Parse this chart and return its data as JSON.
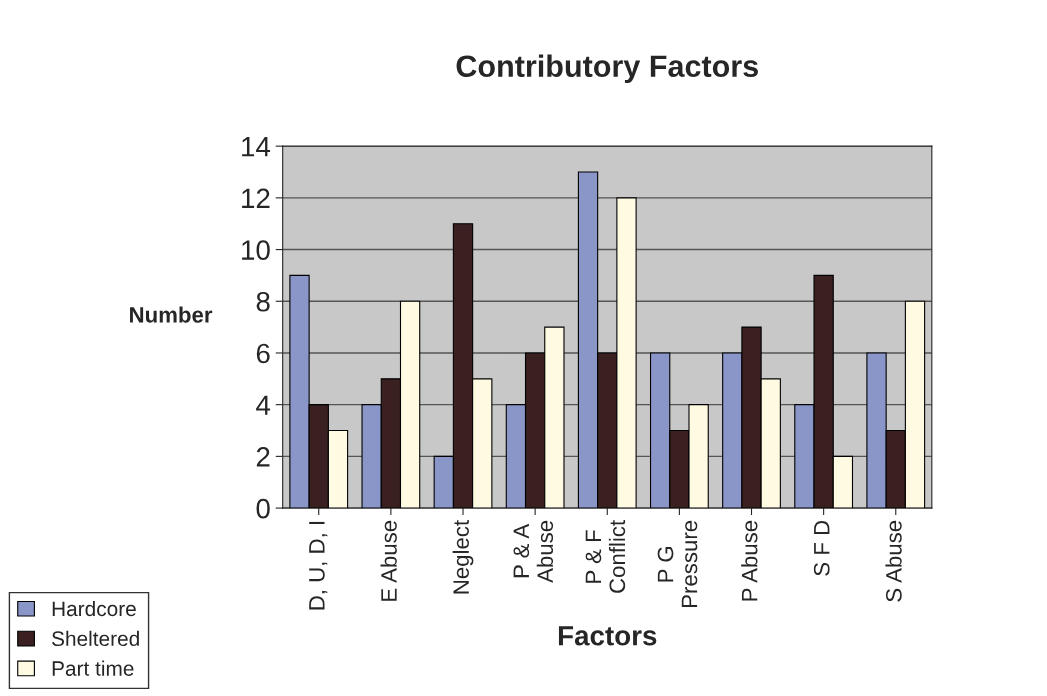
{
  "chart_data": {
    "type": "bar",
    "title": "Contributory Factors",
    "xlabel": "Factors",
    "ylabel": "Number",
    "categories": [
      "D, U, D, I",
      "E Abuse",
      "Neglect",
      "P & A\nAbuse",
      "P & F\nConflict",
      "P G\nPressure",
      "P Abuse",
      "S F D",
      "S Abuse"
    ],
    "series": [
      {
        "name": "Hardcore",
        "color": "#8a96c8",
        "values": [
          9,
          4,
          2,
          4,
          13,
          6,
          6,
          4,
          6
        ]
      },
      {
        "name": "Sheltered",
        "color": "#3a2020",
        "values": [
          4,
          5,
          11,
          6,
          6,
          3,
          7,
          9,
          3
        ]
      },
      {
        "name": "Part time",
        "color": "#fffbe2",
        "values": [
          3,
          8,
          5,
          7,
          12,
          4,
          5,
          2,
          8
        ]
      }
    ],
    "ylim": [
      0,
      14
    ],
    "yticks": [
      0,
      2,
      4,
      6,
      8,
      10,
      12,
      14
    ],
    "grid": "y",
    "legend": "bottom left"
  }
}
